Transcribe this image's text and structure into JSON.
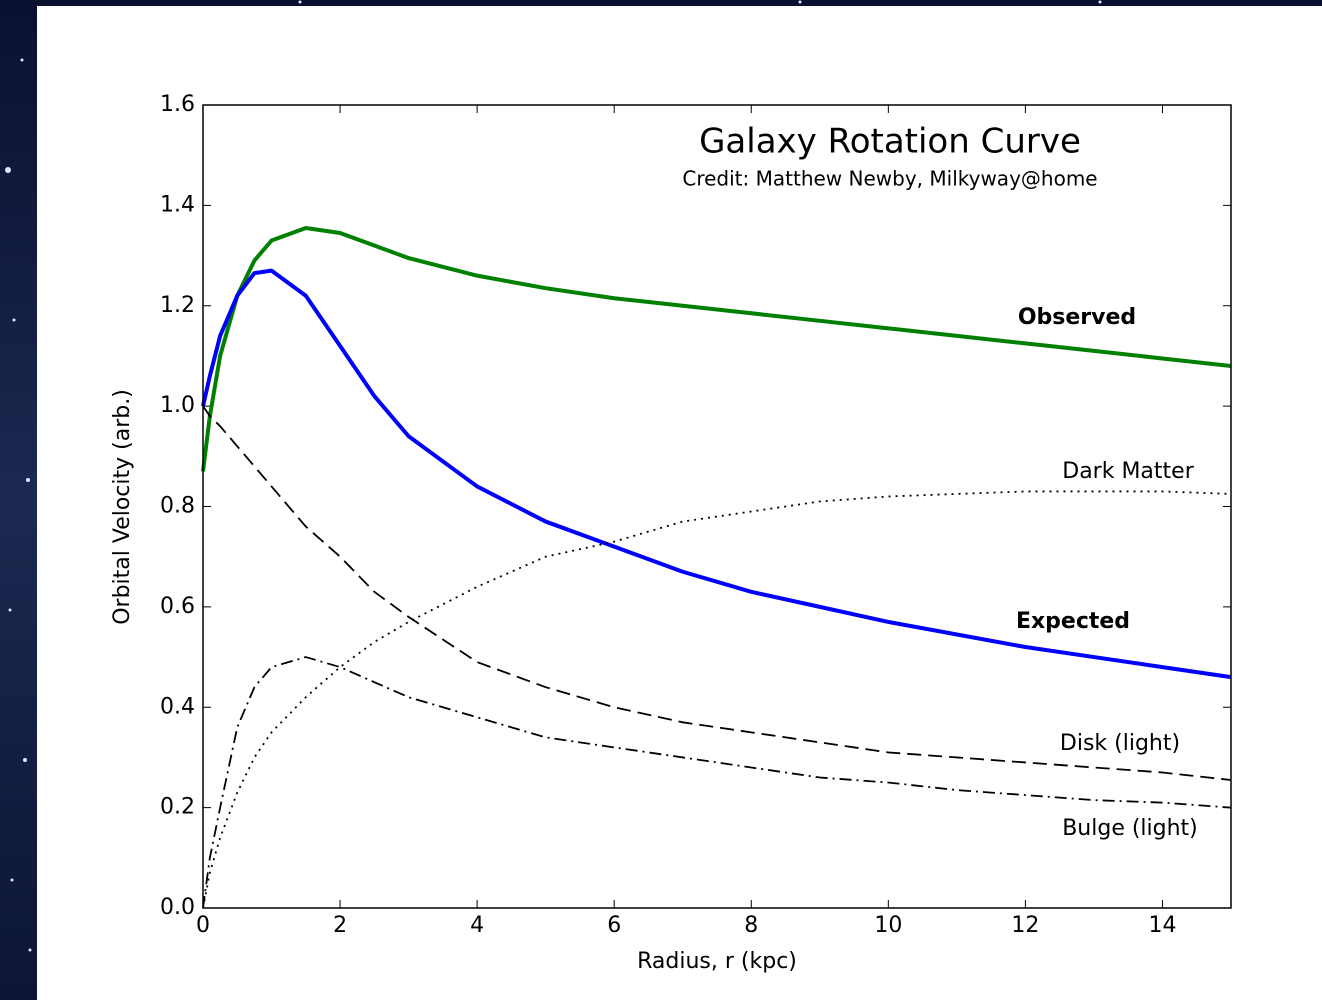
{
  "chart_data": {
    "type": "line",
    "title": "Galaxy Rotation Curve",
    "subtitle": "Credit:  Matthew Newby, Milkyway@home",
    "x_label": "Radius, r (kpc)",
    "y_label": "Orbital Velocity (arb.)",
    "x": [
      0,
      0.1,
      0.25,
      0.5,
      0.75,
      1,
      1.5,
      2,
      2.5,
      3,
      4,
      5,
      6,
      7,
      8,
      9,
      10,
      11,
      12,
      13,
      14,
      15
    ],
    "series": [
      {
        "name": "Observed",
        "color": "#008000",
        "style": "solid",
        "values": [
          0.87,
          0.98,
          1.1,
          1.22,
          1.29,
          1.33,
          1.355,
          1.345,
          1.32,
          1.295,
          1.26,
          1.235,
          1.215,
          1.2,
          1.185,
          1.17,
          1.155,
          1.14,
          1.125,
          1.11,
          1.095,
          1.08
        ]
      },
      {
        "name": "Expected",
        "color": "#0000ff",
        "style": "solid",
        "values": [
          1.0,
          1.06,
          1.14,
          1.22,
          1.265,
          1.27,
          1.22,
          1.12,
          1.02,
          0.94,
          0.84,
          0.77,
          0.72,
          0.67,
          0.63,
          0.6,
          0.57,
          0.545,
          0.52,
          0.5,
          0.48,
          0.46
        ]
      },
      {
        "name": "Dark Matter",
        "color": "#000000",
        "style": "dotted",
        "values": [
          0.0,
          0.07,
          0.14,
          0.23,
          0.3,
          0.35,
          0.42,
          0.48,
          0.53,
          0.57,
          0.64,
          0.7,
          0.73,
          0.77,
          0.79,
          0.81,
          0.82,
          0.825,
          0.83,
          0.83,
          0.83,
          0.825
        ]
      },
      {
        "name": "Disk (light)",
        "color": "#000000",
        "style": "dashed",
        "values": [
          1.0,
          0.98,
          0.96,
          0.92,
          0.88,
          0.84,
          0.76,
          0.7,
          0.63,
          0.58,
          0.49,
          0.44,
          0.4,
          0.37,
          0.35,
          0.33,
          0.31,
          0.3,
          0.29,
          0.28,
          0.27,
          0.255
        ]
      },
      {
        "name": "Bulge (light)",
        "color": "#000000",
        "style": "dashdot",
        "values": [
          0.0,
          0.1,
          0.2,
          0.36,
          0.44,
          0.48,
          0.5,
          0.48,
          0.45,
          0.42,
          0.38,
          0.34,
          0.32,
          0.3,
          0.28,
          0.26,
          0.25,
          0.235,
          0.225,
          0.215,
          0.21,
          0.2
        ]
      }
    ],
    "xlim": [
      0,
      15
    ],
    "xticks": [
      0,
      2,
      4,
      6,
      8,
      10,
      12,
      14
    ],
    "ylim": [
      0,
      1.6
    ],
    "yticks": [
      {
        "value": 0,
        "label": "0.0"
      },
      0.2,
      0.4,
      0.6,
      0.8,
      {
        "value": 1,
        "label": "1.0"
      },
      1.2,
      1.4,
      1.6
    ]
  }
}
